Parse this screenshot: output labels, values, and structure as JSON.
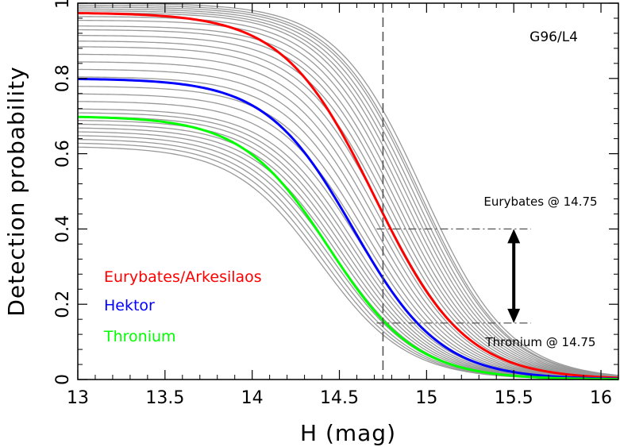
{
  "chart_data": {
    "type": "line",
    "title": "",
    "panel_label": "G96/L4",
    "xlabel": "H (mag)",
    "ylabel": "Detection probability",
    "xlim": [
      13,
      16.1
    ],
    "ylim": [
      0,
      1
    ],
    "xticks": [
      13,
      13.5,
      14,
      14.5,
      15,
      15.5,
      16
    ],
    "xtick_labels": [
      "13",
      "13.5",
      "14",
      "14.5",
      "15",
      "15.5",
      "16"
    ],
    "yticks": [
      0,
      0.2,
      0.4,
      0.6,
      0.8,
      1
    ],
    "ytick_labels": [
      "0",
      "0.2",
      "0.4",
      "0.6",
      "0.8",
      "1"
    ],
    "reference_line": {
      "x": 14.75
    },
    "background_family": {
      "color": "#999999",
      "amplitudes": [
        1.0,
        0.995,
        0.99,
        0.985,
        0.98,
        0.975,
        0.965,
        0.955,
        0.94,
        0.93,
        0.915,
        0.9,
        0.885,
        0.865,
        0.845,
        0.825,
        0.805,
        0.78,
        0.76,
        0.74,
        0.72,
        0.71,
        0.7,
        0.69,
        0.68,
        0.67,
        0.66,
        0.65,
        0.64,
        0.63,
        0.62
      ],
      "midpoints": [
        14.98,
        14.96,
        14.95,
        14.93,
        14.91,
        14.89,
        14.87,
        14.85,
        14.83,
        14.81,
        14.79,
        14.77,
        14.75,
        14.73,
        14.71,
        14.69,
        14.67,
        14.65,
        14.63,
        14.61,
        14.59,
        14.57,
        14.55,
        14.53,
        14.51,
        14.49,
        14.47,
        14.45,
        14.43,
        14.41,
        14.39
      ],
      "width": 0.25
    },
    "series": [
      {
        "name": "Eurybates/Arkesilaos",
        "color": "#ff0000",
        "amplitude": 0.975,
        "midpoint": 14.7,
        "width": 0.26
      },
      {
        "name": "Hektor",
        "color": "#0000ff",
        "amplitude": 0.8,
        "midpoint": 14.58,
        "width": 0.25
      },
      {
        "name": "Thronium",
        "color": "#00ff00",
        "amplitude": 0.7,
        "midpoint": 14.44,
        "width": 0.25
      }
    ],
    "annotations": [
      {
        "text": "Eurybates @ 14.75",
        "value": 0.4
      },
      {
        "text": "Thronium @ 14.75",
        "value": 0.15
      }
    ],
    "legend": {
      "placement": "left-middle",
      "entries": [
        {
          "label": "Eurybates/Arkesilaos",
          "color": "#ff0000"
        },
        {
          "label": "Hektor",
          "color": "#0000ff"
        },
        {
          "label": "Thronium",
          "color": "#00ff00"
        }
      ]
    }
  }
}
